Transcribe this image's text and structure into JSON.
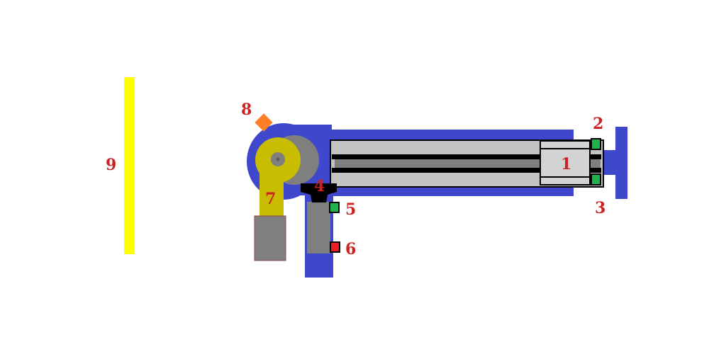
{
  "colors": {
    "background": "#ffffff",
    "frame_blue": "#3f48cc",
    "rail_gray": "#c3c3c3",
    "dark_gray": "#7f7f7f",
    "slider_gray": "#d3d3d3",
    "black": "#000000",
    "sensor_green": "#22b14c",
    "sensor_red": "#ed1c24",
    "arm_olive": "#c8bd00",
    "barrier_yellow": "#ffff00",
    "marker_orange": "#ff7f27",
    "label_red": "#cc2222"
  },
  "labels": {
    "n1": "1",
    "n2": "2",
    "n3": "3",
    "n4": "4",
    "n5": "5",
    "n6": "6",
    "n7": "7",
    "n8": "8",
    "n9": "9"
  }
}
